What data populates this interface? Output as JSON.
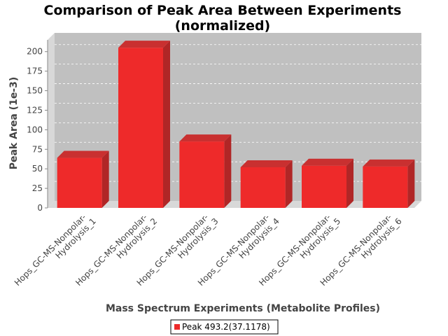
{
  "chart_data": {
    "type": "bar",
    "title_line1": "Comparison of Peak Area Between Experiments",
    "title_line2": "(normalized)",
    "xlabel": "Mass Spectrum Experiments (Metabolite Profiles)",
    "ylabel": "Peak Area (1e-3)",
    "ylim": [
      0,
      215
    ],
    "yticks": [
      0,
      25,
      50,
      75,
      100,
      125,
      150,
      175,
      200
    ],
    "grid": true,
    "categories": [
      [
        "Hops_GC-MS-Nonpolar-",
        "Hydrolysis_1"
      ],
      [
        "Hops_GC-MS-Nonpolar-",
        "Hydrolysis_2"
      ],
      [
        "Hops_GC-MS-Nonpolar-",
        "Hydrolysis_3"
      ],
      [
        "Hops_GC-MS-Nonpolar-",
        "Hydrolysis_4"
      ],
      [
        "Hops_GC-MS-Nonpolar-",
        "Hydrolysis_5"
      ],
      [
        "Hops_GC-MS-Nonpolar-",
        "Hydrolysis_6"
      ]
    ],
    "series": [
      {
        "name": "Peak 493.2(37.1178)",
        "color": "#ee2a2a",
        "values": [
          64,
          205,
          85,
          52,
          54,
          53
        ]
      }
    ],
    "legend": "bottom-center"
  }
}
